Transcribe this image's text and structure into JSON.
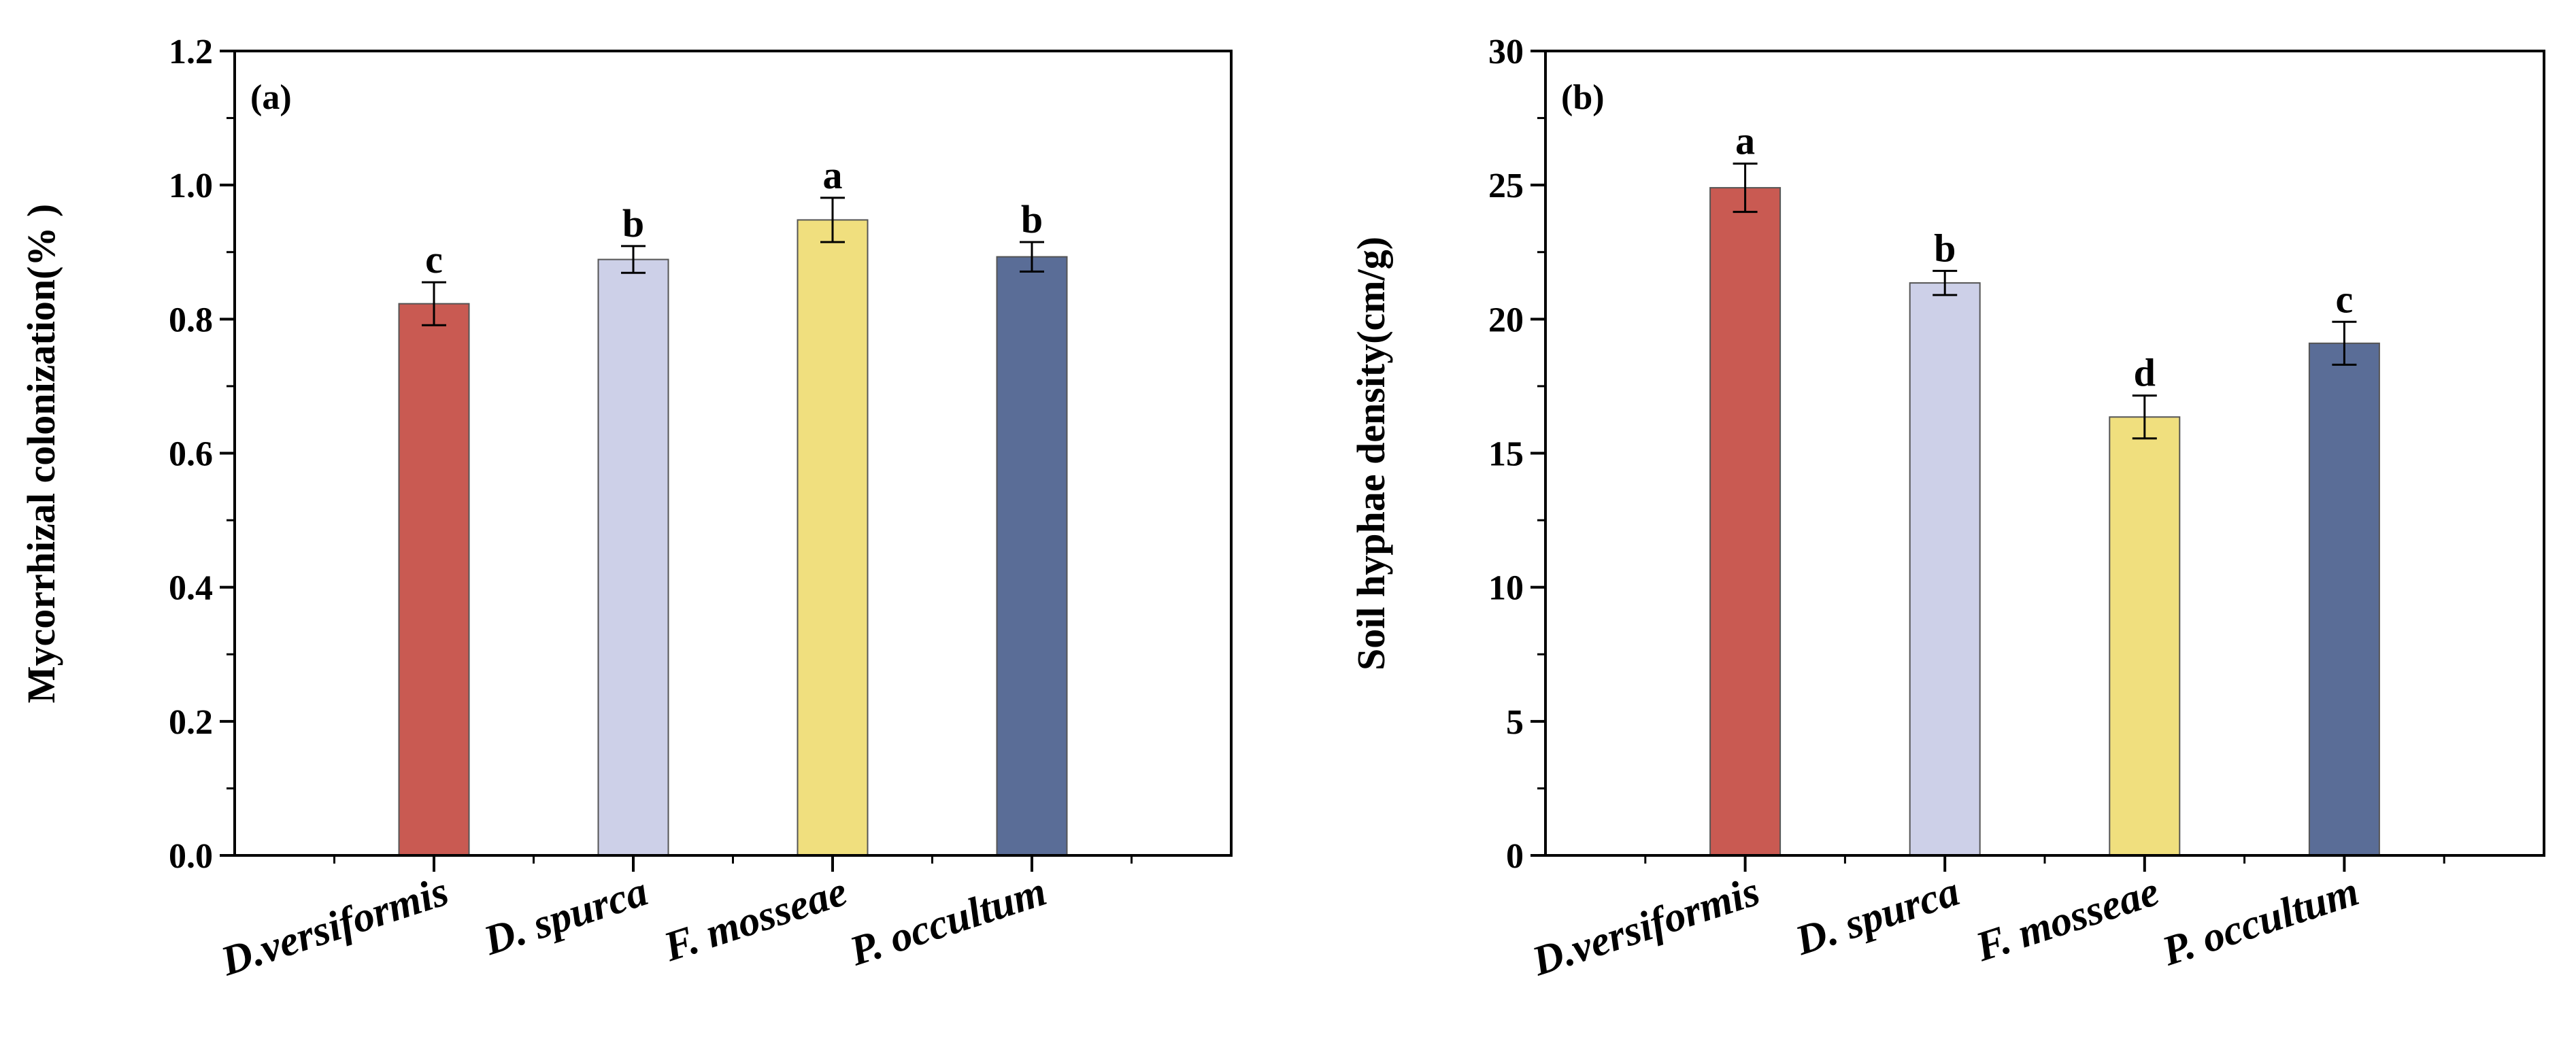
{
  "colors": {
    "D.versiformis": "#c95a52",
    "D. spurca": "#cdd0e8",
    "F. mosseae": "#f0df7e",
    "P. occultum": "#5a6d97",
    "axis": "#000000"
  },
  "chart_data": [
    {
      "type": "bar",
      "panel_label": "(a)",
      "categories": [
        "D.versiformis",
        "D. spurca",
        "F. mosseae",
        "P. occultum"
      ],
      "values": [
        0.823,
        0.889,
        0.948,
        0.893
      ],
      "errors": [
        0.032,
        0.02,
        0.033,
        0.022
      ],
      "significance": [
        "c",
        "b",
        "a",
        "b"
      ],
      "ylabel": "Mycorrhizal colonization(% )",
      "xlabel": "",
      "ylim": [
        0,
        1.2
      ],
      "yticks": [
        "0.0",
        "0.2",
        "0.4",
        "0.6",
        "0.8",
        "1.0",
        "1.2"
      ],
      "ytick_values": [
        0,
        0.2,
        0.4,
        0.6,
        0.8,
        1.0,
        1.2
      ]
    },
    {
      "type": "bar",
      "panel_label": "(b)",
      "categories": [
        "D.versiformis",
        "D. spurca",
        "F. mosseae",
        "P. occultum"
      ],
      "values": [
        24.9,
        21.35,
        16.35,
        19.1
      ],
      "errors": [
        0.9,
        0.45,
        0.8,
        0.8
      ],
      "significance": [
        "a",
        "b",
        "d",
        "c"
      ],
      "ylabel": "Soil hyphae density(cm/g)",
      "xlabel": "",
      "ylim": [
        0,
        30
      ],
      "yticks": [
        "0",
        "5",
        "10",
        "15",
        "20",
        "25",
        "30"
      ],
      "ytick_values": [
        0,
        5,
        10,
        15,
        20,
        25,
        30
      ]
    }
  ]
}
